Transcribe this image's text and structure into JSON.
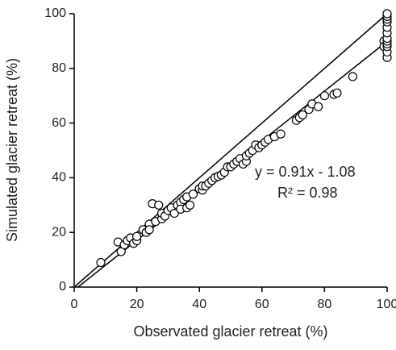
{
  "chart_data": {
    "type": "scatter",
    "xlabel": "Observated glacier retreat (%)",
    "ylabel": "Simulated glacier retreat (%)",
    "annotations": [
      "y = 0.91x - 1.08",
      "R² = 0.98"
    ],
    "x": [
      8.5,
      14,
      15,
      16,
      17,
      18,
      19,
      20,
      20,
      22,
      23,
      24,
      24,
      25,
      26,
      27,
      28,
      28,
      29,
      30,
      31,
      32,
      33,
      34,
      34,
      35,
      36,
      36,
      37,
      38,
      40,
      41,
      41,
      42,
      43,
      44,
      45,
      46,
      47,
      48,
      49,
      50,
      51,
      52,
      53,
      54,
      55,
      55,
      56,
      57,
      58,
      59,
      60,
      61,
      62,
      64,
      66,
      71,
      72,
      73,
      75,
      76,
      78,
      80,
      83,
      84,
      89,
      99,
      99,
      100,
      100,
      100,
      100,
      100,
      100,
      100,
      100,
      100,
      100,
      100,
      100
    ],
    "values": [
      9,
      16.5,
      13,
      15.5,
      17,
      18,
      16,
      17,
      18.5,
      21,
      20,
      23,
      21,
      30.5,
      24,
      30,
      25,
      27,
      26,
      28,
      29,
      27,
      30,
      31,
      28.5,
      32,
      33,
      29,
      30,
      34,
      36,
      35.5,
      37,
      37,
      38,
      39,
      40,
      40.5,
      41,
      42,
      44,
      44,
      45,
      46,
      47,
      45,
      46,
      48,
      49,
      50,
      52,
      51,
      52,
      53,
      54,
      55,
      56,
      61,
      62,
      63,
      65,
      67,
      66,
      70,
      70.5,
      71,
      77,
      90,
      88,
      84,
      86,
      88,
      89,
      90,
      91,
      93,
      95,
      97,
      98,
      99,
      100
    ],
    "marker_color": "#000000",
    "lines": [
      {
        "x": [
          0,
          100
        ],
        "values": [
          0,
          100
        ]
      },
      {
        "x": [
          1.2,
          100
        ],
        "values": [
          0,
          89.9
        ]
      }
    ],
    "line_color": "#000000",
    "xlim": [
      0,
      100
    ],
    "ylim": [
      0,
      100
    ],
    "xticks": [
      0,
      20,
      40,
      60,
      80,
      100
    ],
    "yticks": [
      0,
      20,
      40,
      60,
      80,
      100
    ]
  }
}
